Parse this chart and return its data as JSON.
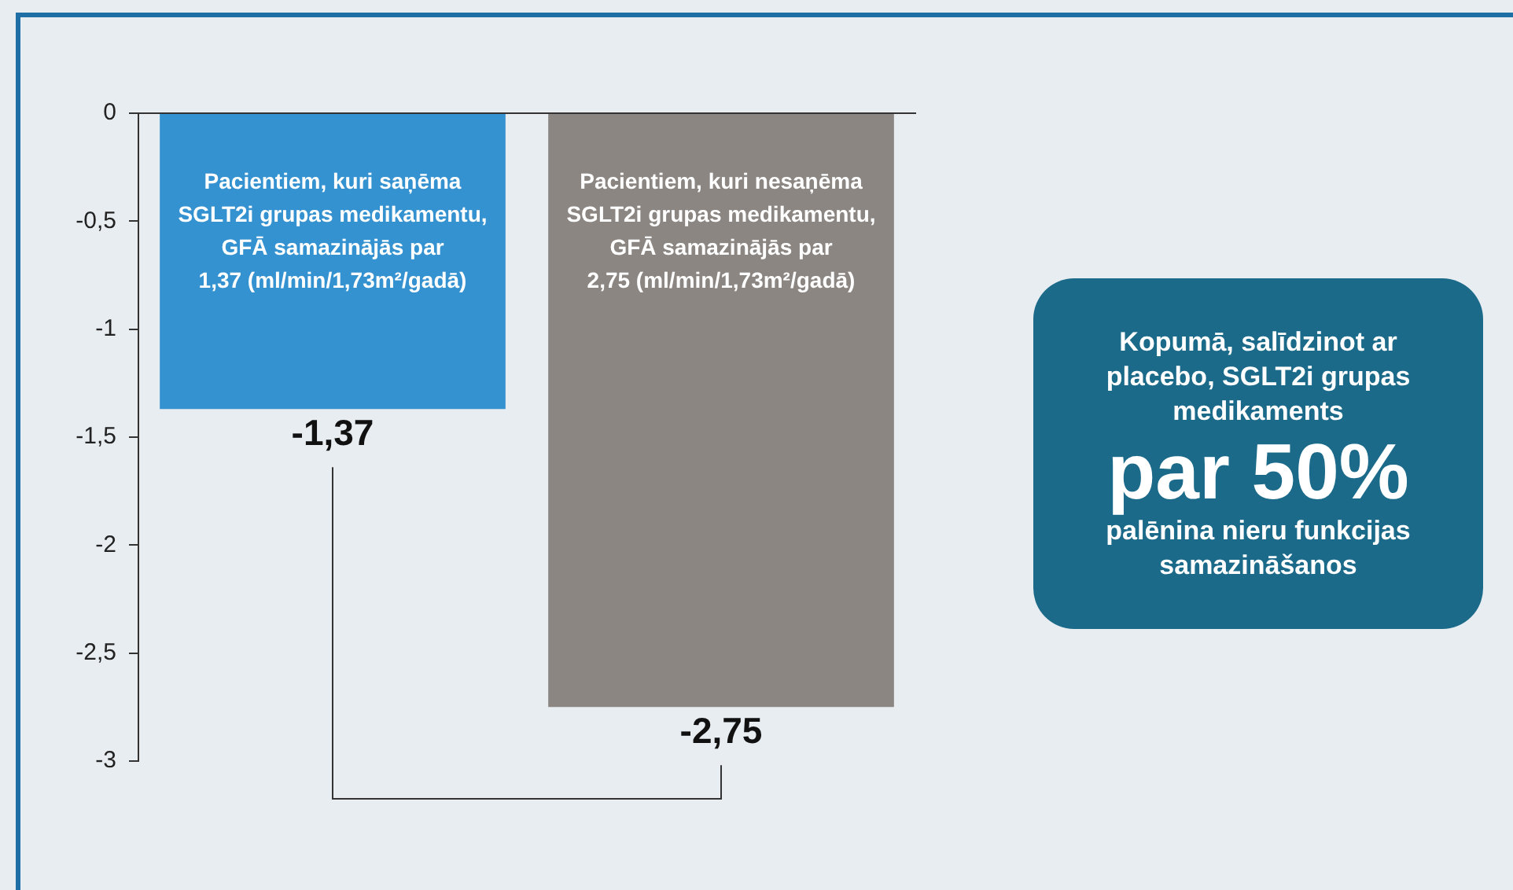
{
  "chart_data": {
    "type": "bar",
    "categories": [
      null,
      null
    ],
    "values": [
      -1.37,
      -2.75
    ],
    "colors": [
      "#3592d1",
      "#8b8682"
    ],
    "value_labels": [
      "-1,37",
      "-2,75"
    ],
    "ylim": [
      -3,
      0
    ],
    "yticks": [
      0,
      {
        "value": -0.5,
        "label": "-0,5"
      },
      -1,
      {
        "value": -1.5,
        "label": "-1,5"
      },
      -2,
      {
        "value": -2.5,
        "label": "-2,5"
      },
      -3
    ],
    "grid": false,
    "legend": false,
    "annotations": [
      "Pacientiem, kuri saņēma\nSGLT2i grupas medikamentu,\nGFĀ samazinājās par\n1,37 (ml/min/1,73m²/gadā)",
      "Pacientiem, kuri nesaņēma\nSGLT2i grupas medikamentu,\nGFĀ samazinājās par\n2,75 (ml/min/1,73m²/gadā)",
      "Kopumā, salīdzinot ar\nplacebo, SGLT2i grupas\nmedikaments",
      "par 50%",
      "palēnina nieru funkcijas\nsamazināšanos"
    ]
  }
}
